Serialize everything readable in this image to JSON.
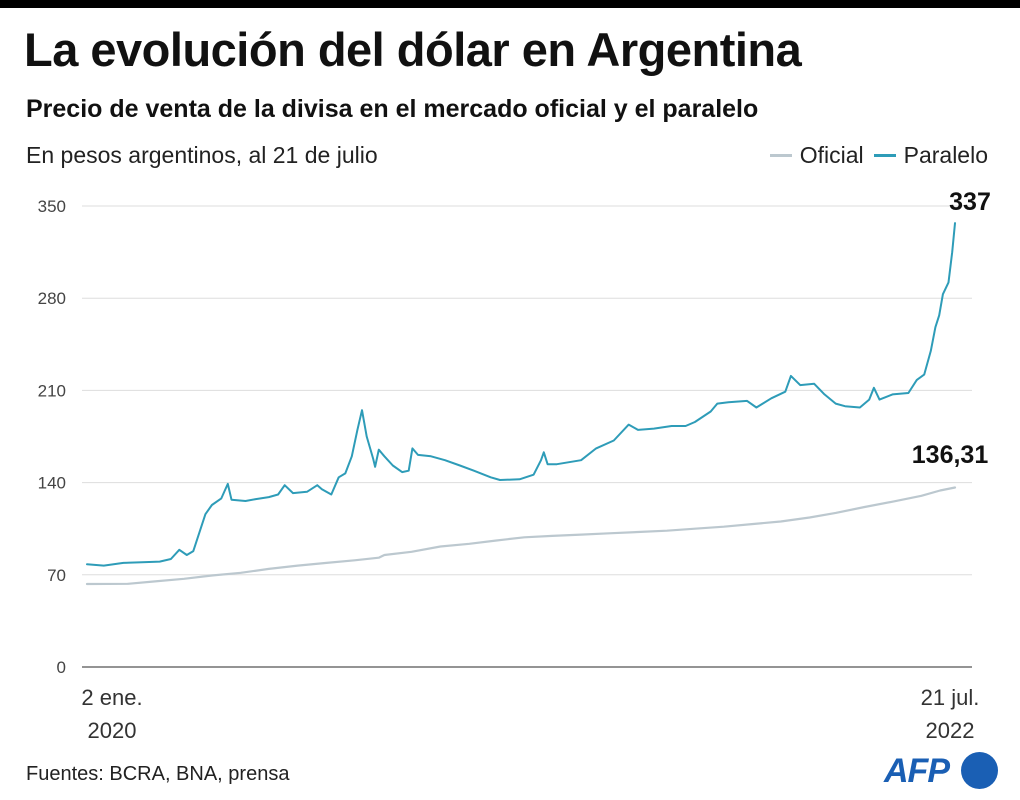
{
  "title": "La evolución del dólar en Argentina",
  "subtitle": "Precio de venta de la divisa en el mercado oficial y el paralelo",
  "unit_note": "En pesos argentinos, al 21 de julio",
  "source": "Fuentes: BCRA, BNA, prensa",
  "logo": "AFP",
  "colors": {
    "oficial": "#bcc8cf",
    "paralelo": "#2e9cb8",
    "grid": "#dddddd",
    "axis": "#555555"
  },
  "chart_data": {
    "type": "line",
    "title": "La evolución del dólar en Argentina",
    "subtitle": "Precio de venta de la divisa en el mercado oficial y el paralelo",
    "ylabel": "En pesos argentinos, al 21 de julio",
    "ylim": [
      0,
      350
    ],
    "yticks": [
      0,
      70,
      140,
      210,
      280,
      350
    ],
    "xlim": [
      "2020-01-02",
      "2022-07-21"
    ],
    "xtick_labels": [
      {
        "date": "2020-01-02",
        "line1": "2 ene.",
        "line2": "2020"
      },
      {
        "date": "2022-07-21",
        "line1": "21 jul.",
        "line2": "2022"
      }
    ],
    "grid": true,
    "legend_position": "top-right",
    "series": [
      {
        "name": "Oficial",
        "end_label": "136,31",
        "points": [
          [
            "2020-01-02",
            63.0
          ],
          [
            "2020-02-15",
            63.2
          ],
          [
            "2020-03-15",
            65.0
          ],
          [
            "2020-04-15",
            67.0
          ],
          [
            "2020-05-15",
            69.5
          ],
          [
            "2020-06-15",
            71.5
          ],
          [
            "2020-07-15",
            74.5
          ],
          [
            "2020-08-15",
            77.0
          ],
          [
            "2020-09-15",
            79.0
          ],
          [
            "2020-10-15",
            81.0
          ],
          [
            "2020-11-10",
            83.0
          ],
          [
            "2020-11-16",
            85.0
          ],
          [
            "2020-12-15",
            87.5
          ],
          [
            "2021-01-15",
            91.5
          ],
          [
            "2021-02-15",
            93.5
          ],
          [
            "2021-03-15",
            96.0
          ],
          [
            "2021-04-15",
            98.5
          ],
          [
            "2021-05-15",
            99.5
          ],
          [
            "2021-06-15",
            100.5
          ],
          [
            "2021-07-15",
            101.5
          ],
          [
            "2021-08-15",
            102.5
          ],
          [
            "2021-09-15",
            103.5
          ],
          [
            "2021-10-15",
            105.0
          ],
          [
            "2021-11-15",
            106.5
          ],
          [
            "2021-12-15",
            108.5
          ],
          [
            "2022-01-15",
            110.5
          ],
          [
            "2022-02-15",
            113.5
          ],
          [
            "2022-03-15",
            117.0
          ],
          [
            "2022-04-15",
            121.5
          ],
          [
            "2022-05-15",
            125.5
          ],
          [
            "2022-06-15",
            130.0
          ],
          [
            "2022-07-05",
            134.0
          ],
          [
            "2022-07-21",
            136.31
          ]
        ]
      },
      {
        "name": "Paralelo",
        "end_label": "337",
        "points": [
          [
            "2020-01-02",
            78.0
          ],
          [
            "2020-01-20",
            77.0
          ],
          [
            "2020-02-10",
            79.0
          ],
          [
            "2020-03-01",
            79.5
          ],
          [
            "2020-03-20",
            80.0
          ],
          [
            "2020-04-01",
            82.0
          ],
          [
            "2020-04-10",
            89.0
          ],
          [
            "2020-04-18",
            85.0
          ],
          [
            "2020-04-25",
            88.0
          ],
          [
            "2020-05-08",
            116.0
          ],
          [
            "2020-05-15",
            123.0
          ],
          [
            "2020-05-25",
            128.0
          ],
          [
            "2020-06-01",
            139.0
          ],
          [
            "2020-06-05",
            127.0
          ],
          [
            "2020-06-20",
            126.0
          ],
          [
            "2020-07-01",
            127.5
          ],
          [
            "2020-07-15",
            129.0
          ],
          [
            "2020-07-25",
            131.0
          ],
          [
            "2020-08-01",
            138.0
          ],
          [
            "2020-08-10",
            132.0
          ],
          [
            "2020-08-25",
            133.0
          ],
          [
            "2020-09-05",
            138.0
          ],
          [
            "2020-09-10",
            135.0
          ],
          [
            "2020-09-20",
            131.0
          ],
          [
            "2020-09-28",
            144.0
          ],
          [
            "2020-10-05",
            147.0
          ],
          [
            "2020-10-12",
            160.0
          ],
          [
            "2020-10-18",
            180.0
          ],
          [
            "2020-10-23",
            195.0
          ],
          [
            "2020-10-28",
            175.0
          ],
          [
            "2020-11-04",
            158.0
          ],
          [
            "2020-11-06",
            152.0
          ],
          [
            "2020-11-10",
            165.0
          ],
          [
            "2020-11-16",
            160.0
          ],
          [
            "2020-11-25",
            153.0
          ],
          [
            "2020-12-05",
            148.0
          ],
          [
            "2020-12-12",
            149.0
          ],
          [
            "2020-12-16",
            166.0
          ],
          [
            "2020-12-22",
            161.0
          ],
          [
            "2021-01-05",
            160.0
          ],
          [
            "2021-01-20",
            157.0
          ],
          [
            "2021-02-05",
            153.0
          ],
          [
            "2021-02-20",
            149.0
          ],
          [
            "2021-03-10",
            144.0
          ],
          [
            "2021-03-20",
            142.0
          ],
          [
            "2021-04-10",
            142.5
          ],
          [
            "2021-04-25",
            146.0
          ],
          [
            "2021-05-03",
            157.0
          ],
          [
            "2021-05-06",
            163.0
          ],
          [
            "2021-05-10",
            154.0
          ],
          [
            "2021-05-20",
            154.0
          ],
          [
            "2021-06-15",
            157.0
          ],
          [
            "2021-07-01",
            166.0
          ],
          [
            "2021-07-20",
            172.0
          ],
          [
            "2021-08-05",
            184.0
          ],
          [
            "2021-08-15",
            180.0
          ],
          [
            "2021-09-01",
            181.0
          ],
          [
            "2021-09-20",
            183.0
          ],
          [
            "2021-10-05",
            183.0
          ],
          [
            "2021-10-15",
            186.0
          ],
          [
            "2021-11-01",
            194.0
          ],
          [
            "2021-11-08",
            200.0
          ],
          [
            "2021-11-20",
            201.0
          ],
          [
            "2021-12-10",
            202.0
          ],
          [
            "2021-12-20",
            197.0
          ],
          [
            "2022-01-05",
            204.0
          ],
          [
            "2022-01-20",
            209.0
          ],
          [
            "2022-01-26",
            221.0
          ],
          [
            "2022-02-05",
            214.0
          ],
          [
            "2022-02-20",
            215.0
          ],
          [
            "2022-03-03",
            207.0
          ],
          [
            "2022-03-15",
            200.0
          ],
          [
            "2022-03-25",
            198.0
          ],
          [
            "2022-04-10",
            197.0
          ],
          [
            "2022-04-20",
            203.0
          ],
          [
            "2022-04-25",
            212.0
          ],
          [
            "2022-05-01",
            203.0
          ],
          [
            "2022-05-15",
            207.0
          ],
          [
            "2022-06-01",
            208.0
          ],
          [
            "2022-06-10",
            218.0
          ],
          [
            "2022-06-18",
            222.0
          ],
          [
            "2022-06-25",
            240.0
          ],
          [
            "2022-06-30",
            258.0
          ],
          [
            "2022-07-04",
            267.0
          ],
          [
            "2022-07-08",
            283.0
          ],
          [
            "2022-07-14",
            292.0
          ],
          [
            "2022-07-18",
            315.0
          ],
          [
            "2022-07-21",
            337.0
          ]
        ]
      }
    ]
  }
}
